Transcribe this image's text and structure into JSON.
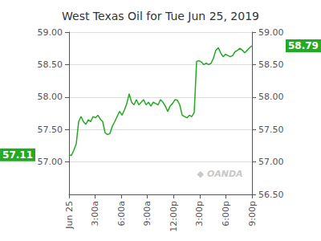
{
  "chart_data": {
    "type": "line",
    "title": "West Texas Oil for Tue Jun 25, 2019",
    "color": "#22aa22",
    "x": [
      0,
      1,
      2,
      3,
      4,
      5,
      6,
      7,
      8,
      9,
      10,
      11,
      12,
      13,
      14,
      15,
      16,
      17,
      18,
      19,
      20,
      21,
      22,
      23,
      24,
      25,
      26,
      27,
      28,
      29,
      30,
      31,
      32,
      33,
      34,
      35,
      36,
      37,
      38,
      39,
      40,
      41,
      42,
      43,
      44,
      45,
      46,
      47,
      48,
      49,
      50,
      51,
      52,
      53,
      54,
      55,
      56,
      57,
      58,
      59,
      60,
      61,
      62,
      63,
      64,
      65,
      66,
      67,
      68,
      69,
      70,
      71,
      72,
      73,
      74,
      75,
      76
    ],
    "values": [
      57.11,
      57.1,
      57.18,
      57.28,
      57.62,
      57.7,
      57.62,
      57.58,
      57.65,
      57.62,
      57.7,
      57.68,
      57.72,
      57.66,
      57.62,
      57.45,
      57.42,
      57.44,
      57.55,
      57.62,
      57.7,
      57.78,
      57.72,
      57.8,
      57.9,
      58.05,
      57.92,
      57.88,
      57.96,
      57.88,
      57.92,
      57.96,
      57.88,
      57.92,
      57.86,
      57.92,
      57.9,
      57.88,
      57.96,
      57.92,
      57.86,
      57.78,
      57.86,
      57.9,
      57.96,
      57.95,
      57.88,
      57.72,
      57.7,
      57.68,
      57.72,
      57.7,
      57.76,
      58.55,
      58.56,
      58.54,
      58.5,
      58.52,
      58.5,
      58.52,
      58.6,
      58.72,
      58.76,
      58.68,
      58.62,
      58.66,
      58.64,
      58.62,
      58.64,
      58.7,
      58.72,
      58.75,
      58.72,
      58.68,
      58.72,
      58.76,
      58.79
    ],
    "xlim": [
      0,
      76
    ],
    "xticks": [
      {
        "value": 0,
        "label": "Jun 25"
      },
      {
        "value": 10.857142857142858,
        "label": "3:00a"
      },
      {
        "value": 21.714285714285715,
        "label": "6:00a"
      },
      {
        "value": 32.57142857142857,
        "label": "9:00a"
      },
      {
        "value": 43.42857142857143,
        "label": "12:00p"
      },
      {
        "value": 54.285714285714285,
        "label": "3:00p"
      },
      {
        "value": 65.14285714285714,
        "label": "6:00p"
      },
      {
        "value": 76,
        "label": "9:00p"
      }
    ],
    "ylim": [
      56.5,
      59.0
    ],
    "yticks": [
      {
        "value": 57.0,
        "label": "57.00"
      },
      {
        "value": 57.5,
        "label": "57.50"
      },
      {
        "value": 58.0,
        "label": "58.00"
      },
      {
        "value": 58.5,
        "label": "58.50"
      },
      {
        "value": 59.0,
        "label": "59.00"
      }
    ],
    "y2lim": [
      56.5,
      59.0
    ],
    "y2ticks": [
      {
        "value": 56.5,
        "label": "56.50"
      },
      {
        "value": 57.0,
        "label": "57.00"
      },
      {
        "value": 57.5,
        "label": "57.50"
      },
      {
        "value": 58.0,
        "label": "58.00"
      },
      {
        "value": 58.5,
        "label": "58.50"
      },
      {
        "value": 59.0,
        "label": "59.00"
      }
    ],
    "grid": true,
    "annotations": [
      {
        "text": "57.11",
        "value": 57.11,
        "axis": "y"
      },
      {
        "text": "58.79",
        "value": 58.79,
        "axis": "y2"
      },
      {
        "text": "◆ OANDA"
      }
    ]
  }
}
